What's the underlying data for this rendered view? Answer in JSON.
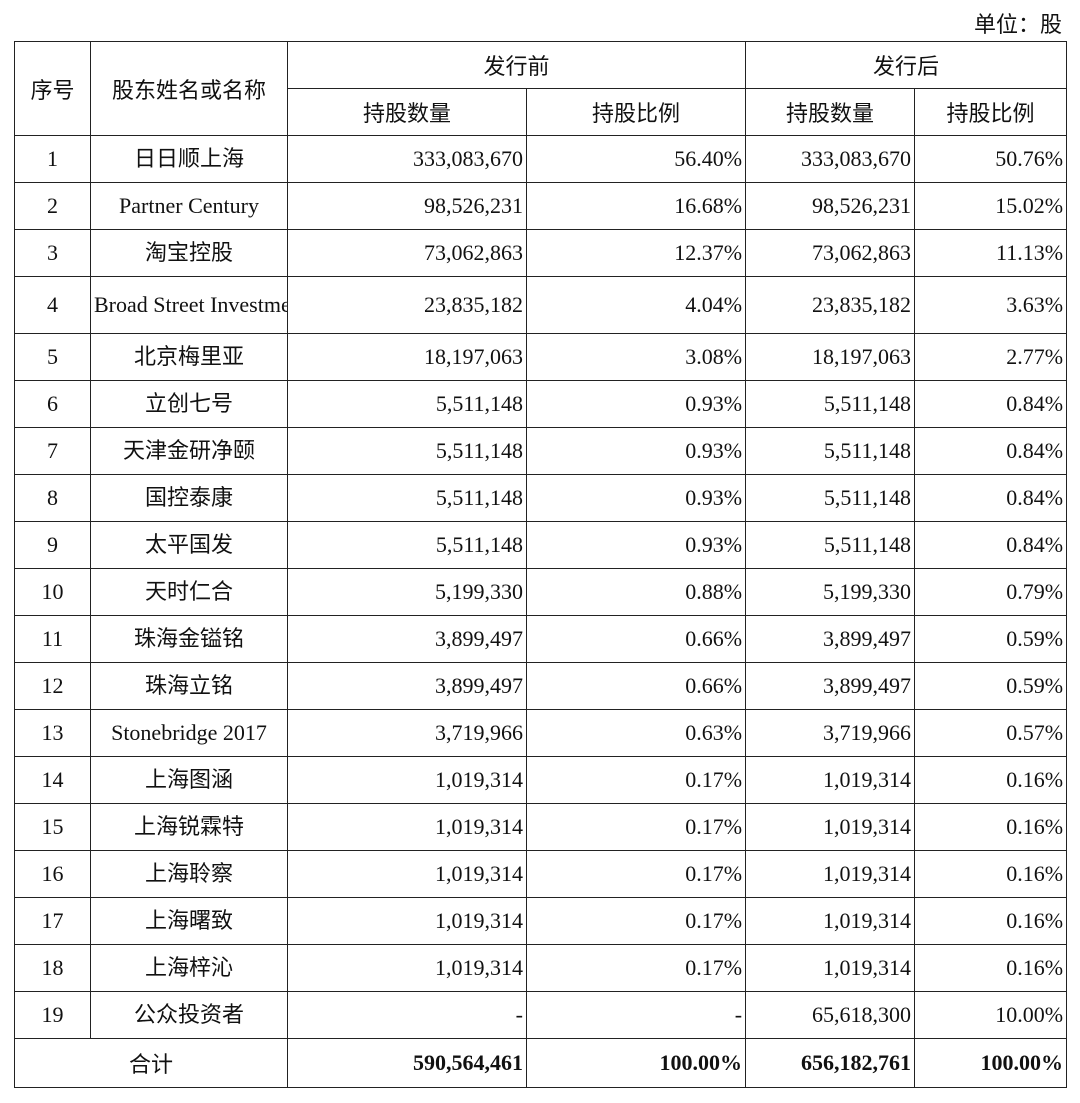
{
  "unit_label": "单位：股",
  "headers": {
    "no": "序号",
    "name": "股东姓名或名称",
    "before": "发行前",
    "after": "发行后",
    "shares": "持股数量",
    "ratio": "持股比例"
  },
  "rows": [
    {
      "no": "1",
      "name": "日日顺上海",
      "before_shares": "333,083,670",
      "before_ratio": "56.40%",
      "after_shares": "333,083,670",
      "after_ratio": "50.76%"
    },
    {
      "no": "2",
      "name": "Partner Century",
      "before_shares": "98,526,231",
      "before_ratio": "16.68%",
      "after_shares": "98,526,231",
      "after_ratio": "15.02%"
    },
    {
      "no": "3",
      "name": "淘宝控股",
      "before_shares": "73,062,863",
      "before_ratio": "12.37%",
      "after_shares": "73,062,863",
      "after_ratio": "11.13%"
    },
    {
      "no": "4",
      "name": "Broad Street Investments",
      "before_shares": "23,835,182",
      "before_ratio": "4.04%",
      "after_shares": "23,835,182",
      "after_ratio": "3.63%"
    },
    {
      "no": "5",
      "name": "北京梅里亚",
      "before_shares": "18,197,063",
      "before_ratio": "3.08%",
      "after_shares": "18,197,063",
      "after_ratio": "2.77%"
    },
    {
      "no": "6",
      "name": "立创七号",
      "before_shares": "5,511,148",
      "before_ratio": "0.93%",
      "after_shares": "5,511,148",
      "after_ratio": "0.84%"
    },
    {
      "no": "7",
      "name": "天津金研净颐",
      "before_shares": "5,511,148",
      "before_ratio": "0.93%",
      "after_shares": "5,511,148",
      "after_ratio": "0.84%"
    },
    {
      "no": "8",
      "name": "国控泰康",
      "before_shares": "5,511,148",
      "before_ratio": "0.93%",
      "after_shares": "5,511,148",
      "after_ratio": "0.84%"
    },
    {
      "no": "9",
      "name": "太平国发",
      "before_shares": "5,511,148",
      "before_ratio": "0.93%",
      "after_shares": "5,511,148",
      "after_ratio": "0.84%"
    },
    {
      "no": "10",
      "name": "天时仁合",
      "before_shares": "5,199,330",
      "before_ratio": "0.88%",
      "after_shares": "5,199,330",
      "after_ratio": "0.79%"
    },
    {
      "no": "11",
      "name": "珠海金镒铭",
      "before_shares": "3,899,497",
      "before_ratio": "0.66%",
      "after_shares": "3,899,497",
      "after_ratio": "0.59%"
    },
    {
      "no": "12",
      "name": "珠海立铭",
      "before_shares": "3,899,497",
      "before_ratio": "0.66%",
      "after_shares": "3,899,497",
      "after_ratio": "0.59%"
    },
    {
      "no": "13",
      "name": "Stonebridge 2017",
      "before_shares": "3,719,966",
      "before_ratio": "0.63%",
      "after_shares": "3,719,966",
      "after_ratio": "0.57%"
    },
    {
      "no": "14",
      "name": "上海图涵",
      "before_shares": "1,019,314",
      "before_ratio": "0.17%",
      "after_shares": "1,019,314",
      "after_ratio": "0.16%"
    },
    {
      "no": "15",
      "name": "上海锐霖特",
      "before_shares": "1,019,314",
      "before_ratio": "0.17%",
      "after_shares": "1,019,314",
      "after_ratio": "0.16%"
    },
    {
      "no": "16",
      "name": "上海聆察",
      "before_shares": "1,019,314",
      "before_ratio": "0.17%",
      "after_shares": "1,019,314",
      "after_ratio": "0.16%"
    },
    {
      "no": "17",
      "name": "上海曙致",
      "before_shares": "1,019,314",
      "before_ratio": "0.17%",
      "after_shares": "1,019,314",
      "after_ratio": "0.16%"
    },
    {
      "no": "18",
      "name": "上海梓沁",
      "before_shares": "1,019,314",
      "before_ratio": "0.17%",
      "after_shares": "1,019,314",
      "after_ratio": "0.16%"
    },
    {
      "no": "19",
      "name": "公众投资者",
      "before_shares": "-",
      "before_ratio": "-",
      "after_shares": "65,618,300",
      "after_ratio": "10.00%"
    }
  ],
  "total": {
    "label": "合计",
    "before_shares": "590,564,461",
    "before_ratio": "100.00%",
    "after_shares": "656,182,761",
    "after_ratio": "100.00%"
  }
}
